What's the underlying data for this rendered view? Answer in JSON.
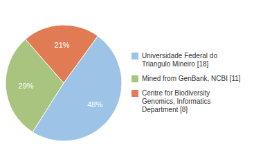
{
  "chart_data": {
    "type": "pie",
    "categories": [
      "Universidade Federal do\nTriangulo Mineiro [18]",
      "Mined from GenBank, NCBI [11]",
      "Centre for Biodiversity\nGenomics, Informatics\nDepartment [8]"
    ],
    "values": [
      48,
      29,
      21
    ],
    "value_labels": [
      "48%",
      "29%",
      "21%"
    ],
    "data_labels": true,
    "colors": [
      "#9DC3E6",
      "#A9C47F",
      "#E07B54"
    ],
    "legend": "right"
  }
}
